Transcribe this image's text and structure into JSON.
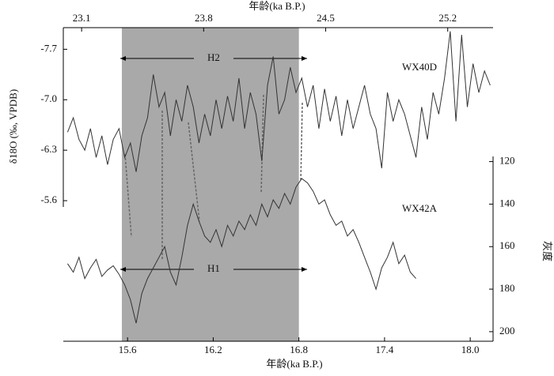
{
  "chart_data": {
    "type": "line",
    "xlabel": "年龄(ka B.P.)",
    "x2label": "年龄(ka B.P.)",
    "ylabel": "δ18O (‰, VPDB)",
    "y2label": "灰度",
    "xlim": [
      15.15,
      18.16
    ],
    "xticks": [
      15.6,
      16.2,
      16.8,
      17.4,
      {
        "value": 18.0,
        "label": "18.0"
      }
    ],
    "x2lim": [
      22.995,
      25.46
    ],
    "x2ticks": [
      23.1,
      23.8,
      24.5,
      25.2
    ],
    "ylim": [
      -8.0,
      -3.65
    ],
    "yticks": [
      -7.7,
      {
        "value": -7.0,
        "label": "-7.0"
      },
      -6.3,
      -5.6
    ],
    "y2lim": [
      57,
      204.5
    ],
    "y2ticks": [
      120,
      140,
      160,
      180,
      200
    ],
    "highlight": [
      15.56,
      16.8
    ],
    "highlight_color": "#a9a9a9",
    "annotations": [
      "H2",
      "H1"
    ],
    "series": [
      {
        "name": "WX40D",
        "color": "#333333",
        "x": [
          15.18,
          15.22,
          15.26,
          15.3,
          15.34,
          15.38,
          15.42,
          15.46,
          15.5,
          15.54,
          15.58,
          15.62,
          15.66,
          15.7,
          15.74,
          15.78,
          15.82,
          15.86,
          15.9,
          15.94,
          15.98,
          16.02,
          16.06,
          16.1,
          16.14,
          16.18,
          16.22,
          16.26,
          16.3,
          16.34,
          16.38,
          16.42,
          16.46,
          16.5,
          16.54,
          16.58,
          16.62,
          16.66,
          16.7,
          16.74,
          16.78,
          16.82,
          16.86,
          16.9,
          16.94,
          16.98,
          17.02,
          17.06,
          17.1,
          17.14,
          17.18,
          17.22,
          17.26,
          17.3,
          17.34,
          17.38,
          17.42,
          17.46,
          17.5,
          17.54,
          17.58,
          17.62,
          17.66,
          17.7,
          17.74,
          17.78,
          17.82,
          17.86,
          17.9,
          17.94,
          17.98,
          18.02,
          18.06,
          18.1,
          18.14
        ],
        "values": [
          -6.55,
          -6.75,
          -6.45,
          -6.3,
          -6.6,
          -6.2,
          -6.5,
          -6.1,
          -6.45,
          -6.6,
          -6.2,
          -6.4,
          -6.0,
          -6.5,
          -6.75,
          -7.35,
          -6.9,
          -7.1,
          -6.5,
          -7.0,
          -6.7,
          -7.2,
          -6.9,
          -6.4,
          -6.8,
          -6.5,
          -7.0,
          -6.6,
          -7.05,
          -6.7,
          -7.3,
          -6.6,
          -7.1,
          -6.8,
          -6.15,
          -7.2,
          -7.6,
          -6.8,
          -7.0,
          -7.45,
          -7.1,
          -7.3,
          -6.9,
          -7.2,
          -6.6,
          -7.15,
          -6.7,
          -7.05,
          -6.5,
          -7.0,
          -6.6,
          -6.9,
          -7.2,
          -6.8,
          -6.6,
          -6.05,
          -7.1,
          -6.7,
          -7.0,
          -6.8,
          -6.5,
          -6.2,
          -6.9,
          -6.45,
          -7.1,
          -6.8,
          -7.3,
          -7.95,
          -6.7,
          -7.9,
          -6.9,
          -7.5,
          -7.1,
          -7.4,
          -7.2
        ]
      },
      {
        "name": "WX42A",
        "color": "#333333",
        "axis": "y2",
        "x": [
          15.18,
          15.22,
          15.26,
          15.3,
          15.34,
          15.38,
          15.42,
          15.46,
          15.5,
          15.54,
          15.58,
          15.62,
          15.66,
          15.7,
          15.74,
          15.78,
          15.82,
          15.86,
          15.9,
          15.94,
          15.98,
          16.02,
          16.06,
          16.1,
          16.14,
          16.18,
          16.22,
          16.26,
          16.3,
          16.34,
          16.38,
          16.42,
          16.46,
          16.5,
          16.54,
          16.58,
          16.62,
          16.66,
          16.7,
          16.74,
          16.78,
          16.82,
          16.86,
          16.9,
          16.94,
          16.98,
          17.02,
          17.06,
          17.1,
          17.14,
          17.18,
          17.22,
          17.26,
          17.3,
          17.34,
          17.38,
          17.42,
          17.46,
          17.5,
          17.54,
          17.58,
          17.62
        ],
        "values": [
          168,
          172,
          165,
          175,
          170,
          166,
          174,
          171,
          169,
          173,
          178,
          185,
          196,
          182,
          175,
          170,
          165,
          160,
          172,
          178,
          165,
          150,
          140,
          148,
          155,
          158,
          152,
          160,
          150,
          155,
          148,
          152,
          145,
          150,
          140,
          146,
          138,
          142,
          135,
          140,
          132,
          128,
          130,
          134,
          140,
          138,
          145,
          150,
          148,
          155,
          152,
          158,
          165,
          172,
          180,
          170,
          165,
          158,
          168,
          164,
          172,
          175
        ]
      }
    ]
  }
}
